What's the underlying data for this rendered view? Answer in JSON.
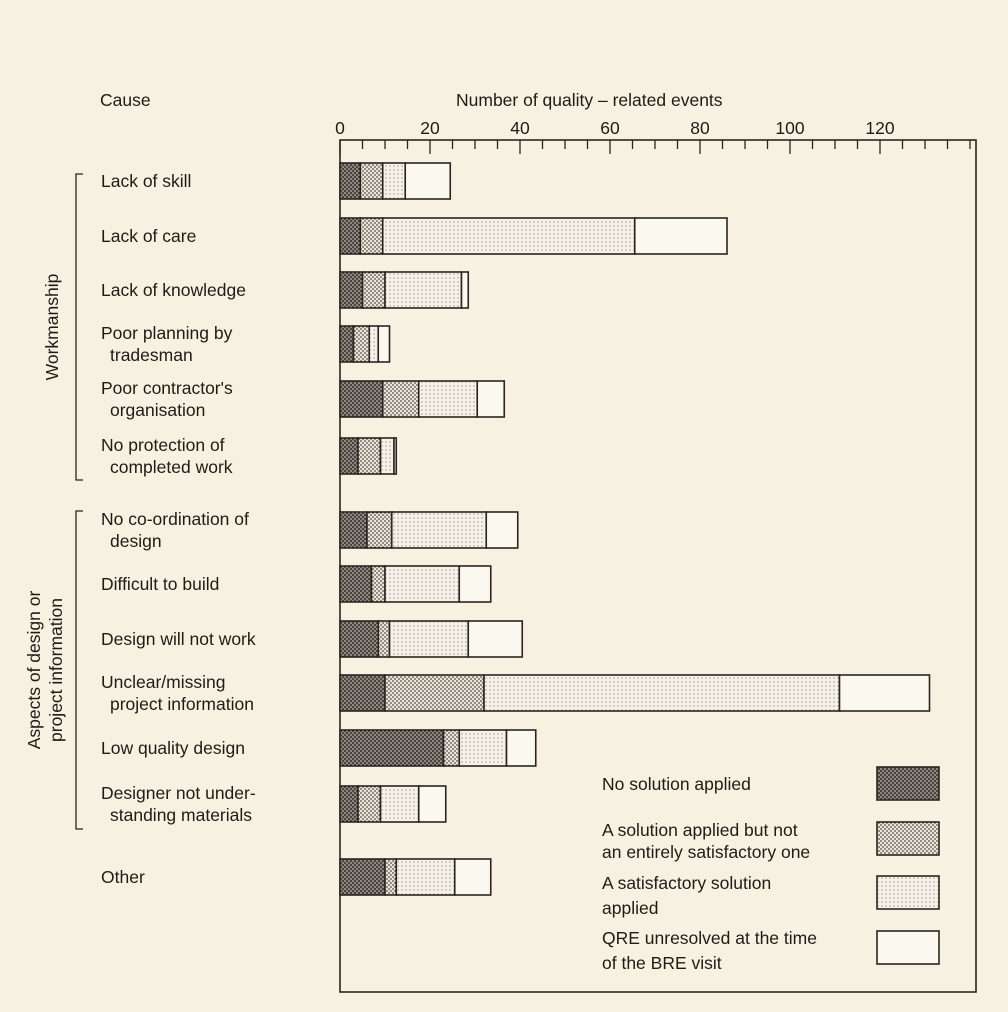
{
  "chart_data": {
    "type": "bar",
    "orientation": "horizontal",
    "stacked": true,
    "title": "Number of quality – related events",
    "y_header": "Cause",
    "xlim": [
      0,
      140
    ],
    "xticks": [
      0,
      20,
      40,
      60,
      80,
      100,
      120
    ],
    "groups": [
      {
        "name": "Workmanship",
        "categories": [
          0,
          1,
          2,
          3,
          4,
          5
        ]
      },
      {
        "name": "Aspects of design or project information",
        "lines": [
          "Aspects of design or",
          "project information"
        ],
        "categories": [
          6,
          7,
          8,
          9,
          10,
          11
        ]
      }
    ],
    "categories": [
      {
        "label": [
          "Lack of skill"
        ]
      },
      {
        "label": [
          "Lack of care"
        ]
      },
      {
        "label": [
          "Lack of knowledge"
        ]
      },
      {
        "label": [
          "Poor planning by",
          "tradesman"
        ]
      },
      {
        "label": [
          "Poor contractor's",
          "organisation"
        ]
      },
      {
        "label": [
          "No protection of",
          "completed work"
        ]
      },
      {
        "label": [
          "No co-ordination of",
          "design"
        ]
      },
      {
        "label": [
          "Difficult to build"
        ]
      },
      {
        "label": [
          "Design will not work"
        ]
      },
      {
        "label": [
          "Unclear/missing",
          "project information"
        ]
      },
      {
        "label": [
          "Low quality design"
        ]
      },
      {
        "label": [
          "Designer not under-",
          "standing materials"
        ]
      },
      {
        "label": [
          "Other"
        ]
      }
    ],
    "series": [
      {
        "name": "No solution applied",
        "pattern": "dark",
        "values": [
          4.5,
          4.5,
          5,
          3,
          9.5,
          4,
          6,
          7,
          8.5,
          10,
          23,
          4,
          10
        ]
      },
      {
        "name": "A solution applied but not an entirely satisfactory one",
        "pattern": "medium",
        "values": [
          5,
          5,
          5,
          3.5,
          8,
          5,
          5.5,
          3,
          2.5,
          22,
          3.5,
          5,
          2.5
        ]
      },
      {
        "name": "A satisfactory solution applied",
        "pattern": "light",
        "values": [
          5,
          56,
          17,
          2,
          13,
          3,
          21,
          16.5,
          17.5,
          79,
          10.5,
          8.5,
          13
        ]
      },
      {
        "name": "QRE unresolved at the time of the BRE visit",
        "pattern": "white",
        "values": [
          10,
          20.5,
          1.5,
          2.5,
          6,
          0.5,
          7,
          7,
          12,
          20,
          6.5,
          6,
          8
        ]
      }
    ],
    "legend": [
      {
        "lines": [
          "No solution applied"
        ],
        "pattern": "dark"
      },
      {
        "lines": [
          "A solution applied but not",
          "an entirely satisfactory one"
        ],
        "pattern": "medium"
      },
      {
        "lines": [
          "A satisfactory solution",
          "applied"
        ],
        "pattern": "light"
      },
      {
        "lines": [
          "QRE unresolved at the time",
          "of the BRE visit"
        ],
        "pattern": "white"
      }
    ]
  }
}
